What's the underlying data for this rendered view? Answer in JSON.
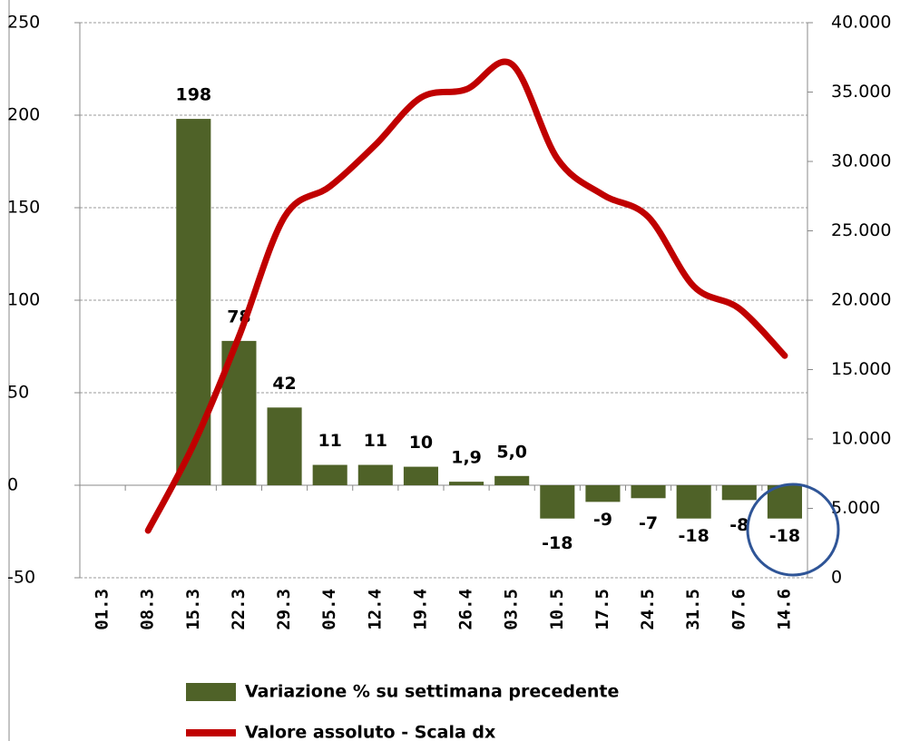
{
  "chart_data": {
    "type": "bar-line",
    "categories": [
      "01.3",
      "08.3",
      "15.3",
      "22.3",
      "29.3",
      "05.4",
      "12.4",
      "19.4",
      "26.4",
      "03.5",
      "10.5",
      "17.5",
      "24.5",
      "31.5",
      "07.6",
      "14.6"
    ],
    "series": [
      {
        "name": "Variazione % su settimana precedente",
        "type": "bar",
        "color": "#4f6228",
        "values": [
          null,
          null,
          198,
          78,
          42,
          11,
          11,
          10,
          1.9,
          5.0,
          -18,
          -9,
          -7,
          -18,
          -8,
          -18
        ],
        "value_labels": [
          null,
          null,
          "198",
          "78",
          "42",
          "11",
          "11",
          "10",
          "1,9",
          "5,0",
          "-18",
          "-9",
          "-7",
          "-18",
          "-8",
          "-18"
        ]
      },
      {
        "name": "Valore assoluto - Scala dx",
        "type": "line",
        "axis": "y2",
        "color": "#c00000",
        "values": [
          null,
          3400,
          9600,
          17400,
          26000,
          28200,
          31200,
          34600,
          35200,
          37000,
          30200,
          27600,
          26000,
          21000,
          19400,
          16000
        ]
      }
    ],
    "ylim": [
      -50,
      250
    ],
    "yticks": [
      -50,
      0,
      50,
      100,
      150,
      200,
      250
    ],
    "y2lim": [
      0,
      40000
    ],
    "y2ticks": [
      0,
      {
        "value": 5000,
        "label": "5.000"
      },
      {
        "value": 10000,
        "label": "10.000"
      },
      {
        "value": 15000,
        "label": "15.000"
      },
      {
        "value": 20000,
        "label": "20.000"
      },
      {
        "value": 25000,
        "label": "25.000"
      },
      {
        "value": 30000,
        "label": "30.000"
      },
      {
        "value": 35000,
        "label": "35.000"
      },
      {
        "value": 40000,
        "label": "40.000"
      }
    ],
    "grid": true,
    "legend": "bottom"
  }
}
